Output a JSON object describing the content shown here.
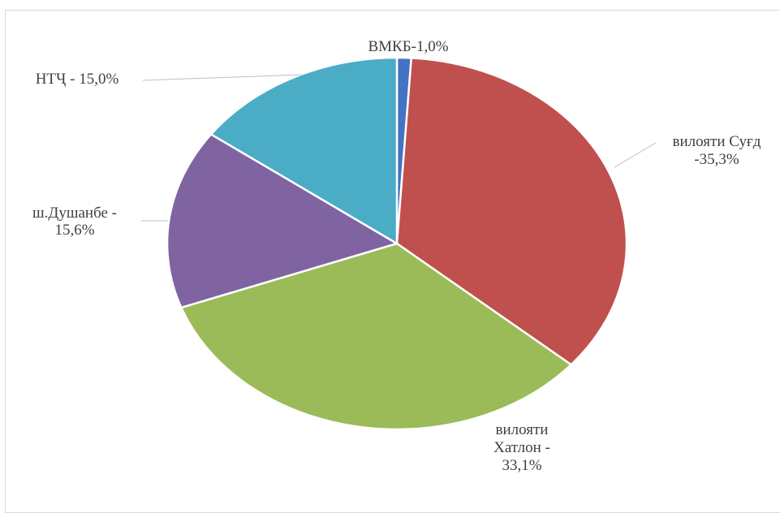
{
  "chart_data": {
    "type": "pie",
    "title": "",
    "slices": [
      {
        "label": "ВМКБ-1,0%",
        "label_lines": [
          "ВМКБ-1,0%"
        ],
        "value": 1.0,
        "color": "#4472c4"
      },
      {
        "label": "вилояти Суғд -35,3%",
        "label_lines": [
          "вилояти Суғд",
          "-35,3%"
        ],
        "value": 35.3,
        "color": "#c0504d"
      },
      {
        "label": "вилояти Хатлон - 33,1%",
        "label_lines": [
          "вилояти",
          "Хатлон -",
          "33,1%"
        ],
        "value": 33.1,
        "color": "#9bbb59"
      },
      {
        "label": "ш.Душанбе - 15,6%",
        "label_lines": [
          "ш.Душанбе -",
          "15,6%"
        ],
        "value": 15.6,
        "color": "#8064a2"
      },
      {
        "label": "НТҶ - 15,0%",
        "label_lines": [
          "НТҶ - 15,0%"
        ],
        "value": 15.0,
        "color": "#4bacc6"
      }
    ],
    "legend": "none"
  }
}
